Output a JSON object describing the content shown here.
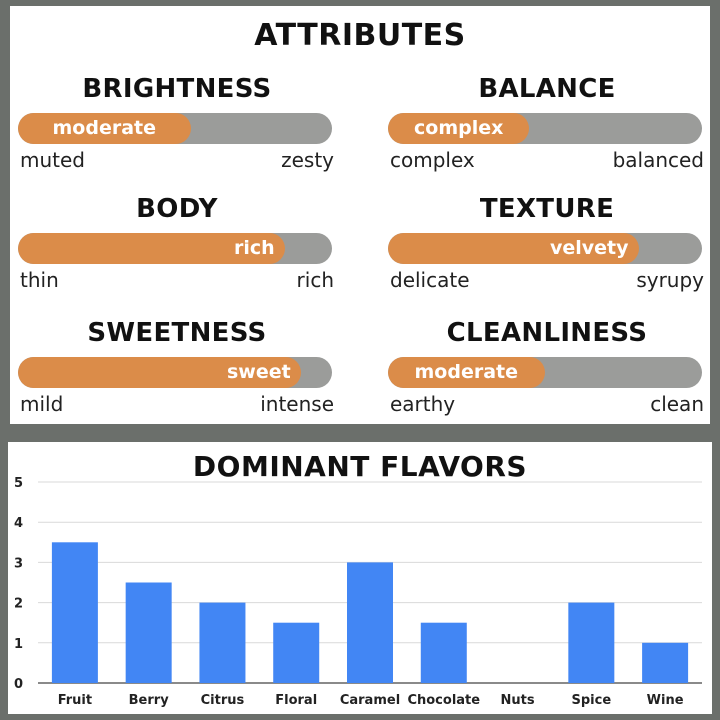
{
  "attributes_section": {
    "title": "ATTRIBUTES",
    "items": [
      {
        "name": "BRIGHTNESS",
        "value_label": "moderate",
        "level": 0.55,
        "low": "muted",
        "high": "zesty"
      },
      {
        "name": "BALANCE",
        "value_label": "complex",
        "level": 0.45,
        "low": "complex",
        "high": "balanced"
      },
      {
        "name": "BODY",
        "value_label": "rich",
        "level": 0.85,
        "low": "thin",
        "high": "rich"
      },
      {
        "name": "TEXTURE",
        "value_label": "velvety",
        "level": 0.8,
        "low": "delicate",
        "high": "syrupy"
      },
      {
        "name": "SWEETNESS",
        "value_label": "sweet",
        "level": 0.9,
        "low": "mild",
        "high": "intense"
      },
      {
        "name": "CLEANLINESS",
        "value_label": "moderate",
        "level": 0.5,
        "low": "earthy",
        "high": "clean"
      }
    ],
    "fill_color": "#db8c49",
    "track_color": "#9b9c9a"
  },
  "chart_data": {
    "type": "bar",
    "title": "DOMINANT FLAVORS",
    "categories": [
      "Fruit",
      "Berry",
      "Citrus",
      "Floral",
      "Caramel",
      "Chocolate",
      "Nuts",
      "Spice",
      "Wine"
    ],
    "values": [
      3.5,
      2.5,
      2,
      1.5,
      3,
      1.5,
      0,
      2,
      1
    ],
    "ylim": [
      0,
      5
    ],
    "yticks": [
      "0",
      "1",
      "2",
      "3",
      "4",
      "5"
    ],
    "grid": true,
    "bar_color": "#4286f4",
    "xlabel": "",
    "ylabel": ""
  }
}
